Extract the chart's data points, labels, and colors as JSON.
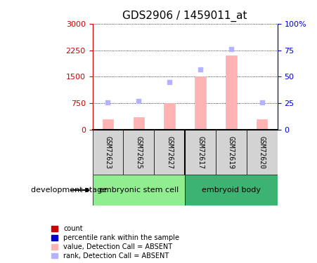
{
  "title": "GDS2906 / 1459011_at",
  "samples": [
    "GSM72623",
    "GSM72625",
    "GSM72627",
    "GSM72617",
    "GSM72619",
    "GSM72620"
  ],
  "groups": {
    "embryonic stem cell": [
      0,
      1,
      2
    ],
    "embryoid body": [
      3,
      4,
      5
    ]
  },
  "bar_values": [
    300,
    350,
    750,
    1500,
    2100,
    300
  ],
  "rank_values": [
    26,
    27,
    45,
    57,
    76,
    26
  ],
  "ylim_left": [
    0,
    3000
  ],
  "ylim_right": [
    0,
    100
  ],
  "yticks_left": [
    0,
    750,
    1500,
    2250,
    3000
  ],
  "yticks_right": [
    0,
    25,
    50,
    75,
    100
  ],
  "bar_color": "#ffb3b3",
  "rank_color": "#b3b3ff",
  "group_colors": [
    "#90ee90",
    "#3cb371"
  ],
  "group_label_color": "black",
  "left_axis_color": "#cc0000",
  "right_axis_color": "#0000cc",
  "legend_items": [
    {
      "label": "count",
      "color": "#cc0000",
      "marker": "s"
    },
    {
      "label": "percentile rank within the sample",
      "color": "#0000cc",
      "marker": "s"
    },
    {
      "label": "value, Detection Call = ABSENT",
      "color": "#ffb3b3",
      "marker": "s"
    },
    {
      "label": "rank, Detection Call = ABSENT",
      "color": "#b3b3ff",
      "marker": "s"
    }
  ],
  "development_stage_label": "development stage"
}
